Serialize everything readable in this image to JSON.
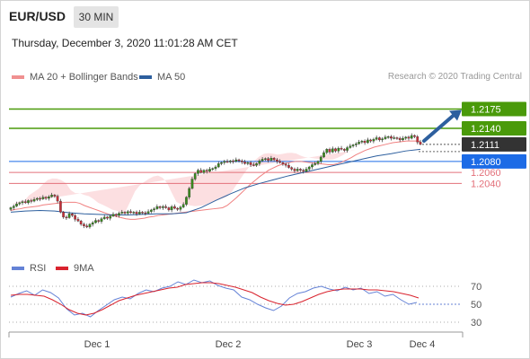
{
  "header": {
    "symbol": "EUR/USD",
    "timeframe": "30 MIN",
    "datetime": "Thursday, December 3, 2020 11:01:28 AM CET"
  },
  "legend": {
    "ma20_label": "MA 20 + Bollinger Bands",
    "ma50_label": "MA 50",
    "research": "Research © 2020 Trading Central",
    "rsi_label": "RSI",
    "ma9_label": "9MA"
  },
  "colors": {
    "resistance": "#4a9a0a",
    "pivot": "#1c6be6",
    "support": "#e3707a",
    "current": "#333333",
    "ma20": "#f08080",
    "ma50": "#2d5f9e",
    "bands": "#fcd9dc",
    "rsi": "#6482d6",
    "ma9": "#d9232e",
    "arrow": "#2d5f9e",
    "bull": "#3a8a1e",
    "bear": "#c8303a"
  },
  "chart_data": [
    {
      "type": "candlestick",
      "x_ticks": [
        "Dec 1",
        "Dec 2",
        "Dec 3",
        "Dec 4"
      ],
      "ylim": [
        1.193,
        1.221
      ],
      "levels": [
        {
          "name": "resistance-2",
          "value": 1.2175,
          "label": "1.2175",
          "kind": "resistance"
        },
        {
          "name": "resistance-1",
          "value": 1.214,
          "label": "1.2140",
          "kind": "resistance"
        },
        {
          "name": "current-price",
          "value": 1.2111,
          "label": "1.2111",
          "kind": "current"
        },
        {
          "name": "pivot",
          "value": 1.208,
          "label": "1.2080",
          "kind": "pivot"
        },
        {
          "name": "support-1",
          "value": 1.206,
          "label": "1.2060",
          "kind": "support"
        },
        {
          "name": "support-2",
          "value": 1.204,
          "label": "1.2040",
          "kind": "support"
        }
      ],
      "close": [
        1.1996,
        1.1999,
        1.2003,
        1.2005,
        1.2007,
        1.2005,
        1.2009,
        1.2008,
        1.2011,
        1.2013,
        1.2012,
        1.2015,
        1.2013,
        1.2016,
        1.2019,
        1.2017,
        1.2008,
        1.1988,
        1.1979,
        1.1978,
        1.1985,
        1.1982,
        1.1975,
        1.1972,
        1.1966,
        1.1963,
        1.1961,
        1.1966,
        1.1969,
        1.1973,
        1.1971,
        1.1976,
        1.1979,
        1.1977,
        1.1981,
        1.1984,
        1.1982,
        1.1986,
        1.1988,
        1.1986,
        1.1989,
        1.1987,
        1.1988,
        1.1985,
        1.1988,
        1.1987,
        1.1986,
        1.1989,
        1.1992,
        1.1994,
        1.1998,
        1.1996,
        1.1998,
        1.1996,
        1.1992,
        1.1998,
        1.1995,
        1.1993,
        1.1997,
        1.2002,
        1.2015,
        1.2031,
        1.2048,
        1.2058,
        1.2064,
        1.206,
        1.2064,
        1.2062,
        1.2066,
        1.2067,
        1.207,
        1.2076,
        1.2078,
        1.208,
        1.2079,
        1.2081,
        1.208,
        1.2083,
        1.2081,
        1.2079,
        1.2076,
        1.2078,
        1.2074,
        1.2073,
        1.2076,
        1.2081,
        1.2084,
        1.2085,
        1.2082,
        1.2086,
        1.2083,
        1.208,
        1.2078,
        1.2075,
        1.2073,
        1.2069,
        1.2066,
        1.2063,
        1.2066,
        1.2064,
        1.2062,
        1.2066,
        1.207,
        1.2074,
        1.2076,
        1.208,
        1.2088,
        1.2096,
        1.2102,
        1.2097,
        1.2103,
        1.2099,
        1.2104,
        1.2102,
        1.21,
        1.2105,
        1.2108,
        1.211,
        1.2112,
        1.2115,
        1.2117,
        1.2114,
        1.2119,
        1.2117,
        1.212,
        1.2123,
        1.2119,
        1.2121,
        1.2124,
        1.2125,
        1.2122,
        1.2123,
        1.2122,
        1.2119,
        1.2122,
        1.2124,
        1.2122,
        1.2127,
        1.2125,
        1.2115,
        1.2111
      ],
      "ma20": [
        1.1991,
        1.1993,
        1.1994,
        1.1996,
        1.1997,
        1.1998,
        1.1999,
        1.2001,
        1.2002,
        1.2003,
        1.2004,
        1.2005,
        1.2006,
        1.2006,
        1.2006,
        1.2004,
        1.2,
        1.1997,
        1.1994,
        1.1991,
        1.1988,
        1.1985,
        1.1982,
        1.198,
        1.1978,
        1.1976,
        1.1975,
        1.1975,
        1.1976,
        1.1977,
        1.1979,
        1.198,
        1.1982,
        1.1983,
        1.1984,
        1.1985,
        1.1986,
        1.1987,
        1.1988,
        1.1989,
        1.199,
        1.1991,
        1.1992,
        1.1993,
        1.1994,
        1.1995,
        1.1996,
        1.2,
        1.2007,
        1.2014,
        1.2022,
        1.203,
        1.2038,
        1.2045,
        1.2052,
        1.2058,
        1.2064,
        1.2068,
        1.2072,
        1.2075,
        1.2077,
        1.2079,
        1.208,
        1.208,
        1.2079,
        1.2078,
        1.2077,
        1.2076,
        1.2075,
        1.2074,
        1.2074,
        1.2076,
        1.2079,
        1.2083,
        1.2087,
        1.2092,
        1.2096,
        1.21,
        1.2103,
        1.2106,
        1.2108,
        1.211,
        1.2112,
        1.2114,
        1.2115,
        1.2116,
        1.2117,
        1.2117,
        1.2117,
        1.2116
      ],
      "ma20_x": [
        0,
        2,
        4,
        6,
        8,
        10,
        12,
        14,
        16,
        18,
        20,
        22,
        24,
        26,
        28,
        30,
        32,
        34,
        36,
        38,
        40,
        42,
        44,
        46,
        48,
        50,
        52,
        54,
        56,
        58,
        60,
        62,
        64,
        66,
        68,
        70,
        72,
        74,
        76,
        78,
        80,
        82,
        84,
        86,
        88,
        90,
        92,
        94,
        96,
        98,
        100,
        102,
        104,
        106,
        108,
        110,
        112,
        114,
        116,
        118,
        120,
        122,
        124,
        126,
        128,
        130,
        132,
        134,
        136,
        138,
        140,
        142,
        144,
        146,
        148,
        150,
        152,
        154,
        156,
        158,
        160,
        162,
        164,
        166,
        168,
        170,
        172,
        174,
        176,
        178
      ],
      "ma50": [
        1.1988,
        1.199,
        1.1991,
        1.199,
        1.1987,
        1.1985,
        1.1984,
        1.1983,
        1.1983,
        1.1984,
        1.1985,
        1.1985,
        1.1987,
        1.1996,
        1.2009,
        1.2021,
        1.2032,
        1.204,
        1.2047,
        1.2054,
        1.206,
        1.2066,
        1.2072,
        1.2078,
        1.2084,
        1.209,
        1.2094,
        1.2099,
        1.2102
      ],
      "ma50_x": [
        0,
        5,
        10,
        15,
        20,
        25,
        30,
        35,
        40,
        45,
        50,
        55,
        60,
        65,
        70,
        75,
        80,
        85,
        90,
        95,
        100,
        105,
        110,
        115,
        120,
        125,
        130,
        135,
        140
      ]
    },
    {
      "type": "line",
      "title": "RSI",
      "ylim": [
        20,
        80
      ],
      "y_ticks": [
        70,
        50,
        30
      ],
      "rsi": [
        58,
        62,
        65,
        60,
        66,
        63,
        57,
        45,
        38,
        40,
        36,
        43,
        49,
        55,
        58,
        56,
        62,
        66,
        64,
        68,
        70,
        75,
        72,
        77,
        74,
        76,
        71,
        68,
        66,
        58,
        55,
        50,
        46,
        43,
        48,
        57,
        62,
        64,
        68,
        70,
        67,
        65,
        69,
        66,
        68,
        62,
        64,
        59,
        61,
        55,
        50,
        52
      ],
      "ma9": [
        60,
        61,
        61,
        60,
        59,
        55,
        50,
        44,
        40,
        38,
        40,
        44,
        49,
        54,
        57,
        60,
        62,
        64,
        66,
        68,
        69,
        72,
        73,
        74,
        74,
        73,
        71,
        69,
        66,
        63,
        58,
        54,
        51,
        49,
        50,
        53,
        57,
        61,
        64,
        66,
        67,
        67,
        67,
        66,
        66,
        65,
        64,
        62,
        60,
        57
      ],
      "rsi_flat": 50
    }
  ]
}
